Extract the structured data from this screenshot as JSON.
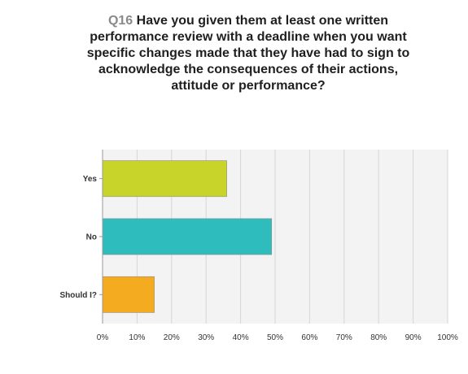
{
  "question": {
    "number": "Q16",
    "text": "Have you given them at least one written performance review with a deadline when you want specific changes made that they have had to sign to acknowledge the consequences of their actions, attitude or performance?"
  },
  "chart_data": {
    "type": "bar",
    "orientation": "horizontal",
    "categories": [
      "Yes",
      "No",
      "Should I?"
    ],
    "values": [
      36,
      49,
      15
    ],
    "colors": [
      "#c8d42a",
      "#2fbcbc",
      "#f5ab1f"
    ],
    "value_unit": "%",
    "xlim": [
      0,
      100
    ],
    "xticks": [
      "0%",
      "10%",
      "20%",
      "30%",
      "40%",
      "50%",
      "60%",
      "70%",
      "80%",
      "90%",
      "100%"
    ],
    "grid": true,
    "title": "Q16 Have you given them at least one written performance review with a deadline when you want specific changes made that they have had to sign to acknowledge the consequences of their actions, attitude or performance?",
    "xlabel": "",
    "ylabel": ""
  }
}
